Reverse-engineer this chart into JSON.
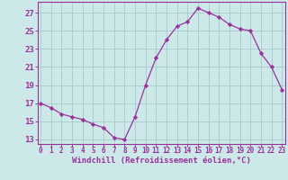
{
  "x": [
    0,
    1,
    2,
    3,
    4,
    5,
    6,
    7,
    8,
    9,
    10,
    11,
    12,
    13,
    14,
    15,
    16,
    17,
    18,
    19,
    20,
    21,
    22,
    23
  ],
  "y": [
    17.0,
    16.5,
    15.8,
    15.5,
    15.2,
    14.7,
    14.3,
    13.2,
    13.0,
    15.5,
    19.0,
    22.0,
    24.0,
    25.5,
    26.0,
    27.5,
    27.0,
    26.5,
    25.7,
    25.2,
    25.0,
    22.5,
    21.0,
    18.5
  ],
  "line_color": "#993399",
  "marker": "D",
  "marker_size": 2.2,
  "bg_color": "#cce8e8",
  "grid_color": "#aacfcf",
  "xlabel": "Windchill (Refroidissement éolien,°C)",
  "xlim": [
    -0.3,
    23.3
  ],
  "ylim": [
    12.5,
    28.2
  ],
  "yticks": [
    13,
    15,
    17,
    19,
    21,
    23,
    25,
    27
  ],
  "xticks": [
    0,
    1,
    2,
    3,
    4,
    5,
    6,
    7,
    8,
    9,
    10,
    11,
    12,
    13,
    14,
    15,
    16,
    17,
    18,
    19,
    20,
    21,
    22,
    23
  ],
  "tick_color": "#993399",
  "spine_color": "#993399",
  "xlabel_fontsize": 6.5,
  "xtick_fontsize": 5.5,
  "ytick_fontsize": 6.5
}
